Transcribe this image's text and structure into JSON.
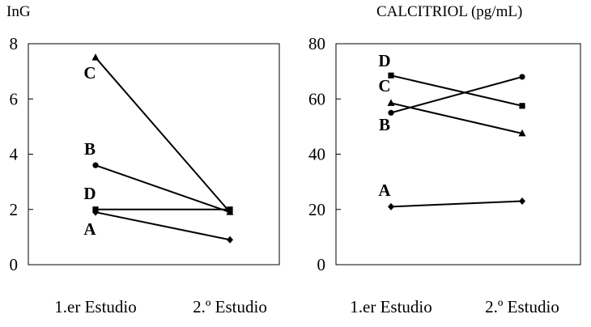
{
  "chart_data": [
    {
      "type": "line",
      "title": "InG",
      "categories": [
        "1.er Estudio",
        "2.º Estudio"
      ],
      "ylim": [
        0,
        8
      ],
      "yticks": [
        0,
        2,
        4,
        6,
        8
      ],
      "grid": false,
      "series": [
        {
          "name": "C",
          "values": [
            7.5,
            1.9
          ],
          "marker": "triangle"
        },
        {
          "name": "B",
          "values": [
            3.6,
            1.9
          ],
          "marker": "circle"
        },
        {
          "name": "D",
          "values": [
            2.0,
            2.0
          ],
          "marker": "square"
        },
        {
          "name": "A",
          "values": [
            1.9,
            0.9
          ],
          "marker": "diamond"
        }
      ]
    },
    {
      "type": "line",
      "title": "CALCITRIOL (pg/mL)",
      "categories": [
        "1.er Estudio",
        "2.º Estudio"
      ],
      "ylim": [
        0,
        80
      ],
      "yticks": [
        0,
        20,
        40,
        60,
        80
      ],
      "grid": false,
      "series": [
        {
          "name": "D",
          "values": [
            68.5,
            57.5
          ],
          "marker": "square"
        },
        {
          "name": "C",
          "values": [
            58.5,
            47.5
          ],
          "marker": "triangle"
        },
        {
          "name": "B",
          "values": [
            55.0,
            68.0
          ],
          "marker": "circle"
        },
        {
          "name": "A",
          "values": [
            21.0,
            23.0
          ],
          "marker": "diamond"
        }
      ]
    }
  ]
}
